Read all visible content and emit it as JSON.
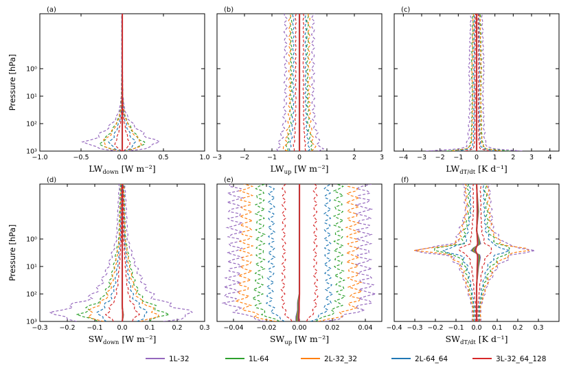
{
  "colors": {
    "1L-32": "#9467bd",
    "1L-64": "#2ca02c",
    "2L-32_32": "#ff7f0e",
    "2L-64_64": "#1f77b4",
    "3L-32_64_128": "#d62728"
  },
  "legend": {
    "entries": [
      "1L-32",
      "1L-64",
      "2L-32_32",
      "2L-64_64",
      "3L-32_64_128"
    ]
  },
  "chart_data": [
    {
      "type": "line",
      "panel_label": "(a)",
      "xlabel_main": "LW",
      "xlabel_sub": "down",
      "xlabel_unit": "[W m⁻²]",
      "ylabel": "Pressure [hPa]",
      "xlim": [
        -1.0,
        1.0
      ],
      "x_ticks": [
        "−1.0",
        "−0.5",
        "0.0",
        "0.5",
        "1.0"
      ],
      "y_scale": "log",
      "ylim": [
        1000,
        0.01
      ],
      "y_inverted": true,
      "y_ticks": [
        "10⁰",
        "10¹",
        "10²",
        "10³"
      ],
      "series_shape": {
        "pressure_hPa": [
          1000,
          900,
          700,
          500,
          300,
          150,
          70,
          30,
          10,
          1,
          0.01
        ],
        "mean": [
          0,
          0,
          0,
          0,
          0,
          0,
          0,
          0,
          0,
          0,
          0
        ],
        "spread_envelope": [
          0.05,
          0.2,
          0.35,
          0.45,
          0.3,
          0.18,
          0.08,
          0.03,
          0.01,
          0.005,
          0.005
        ],
        "spread_scale": {
          "1L-32": 1.0,
          "1L-64": 0.6,
          "2L-32_32": 0.55,
          "2L-64_64": 0.35,
          "3L-32_64_128": 0.2
        }
      }
    },
    {
      "type": "line",
      "panel_label": "(b)",
      "xlabel_main": "LW",
      "xlabel_sub": "up",
      "xlabel_unit": "[W m⁻²]",
      "ylabel": "",
      "xlim": [
        -3,
        3
      ],
      "x_ticks": [
        "−3",
        "−2",
        "−1",
        "0",
        "1",
        "2",
        "3"
      ],
      "y_scale": "log",
      "ylim": [
        1000,
        0.01
      ],
      "y_inverted": true,
      "series_shape": {
        "pressure_hPa": [
          1000,
          800,
          500,
          100,
          10,
          0.01
        ],
        "mean": [
          0,
          0,
          0,
          0,
          0,
          0
        ],
        "spread_envelope": [
          0.7,
          0.8,
          0.7,
          0.55,
          0.5,
          0.5
        ],
        "spread_scale": {
          "1L-32": 1.0,
          "1L-64": 0.6,
          "2L-32_32": 0.7,
          "2L-64_64": 0.45,
          "3L-32_64_128": 0.28
        }
      }
    },
    {
      "type": "line",
      "panel_label": "(c)",
      "xlabel_main": "LW",
      "xlabel_sub": "dT/dt",
      "xlabel_unit": "[K d⁻¹]",
      "ylabel": "",
      "xlim": [
        -4.5,
        4.5
      ],
      "x_ticks": [
        "−4",
        "−3",
        "−2",
        "−1",
        "0",
        "1",
        "2",
        "3",
        "4"
      ],
      "y_scale": "log",
      "ylim": [
        1000,
        0.01
      ],
      "y_inverted": true,
      "series_shape": {
        "pressure_hPa": [
          1000,
          900,
          700,
          400,
          100,
          10,
          1,
          0.01
        ],
        "mean": [
          0,
          0,
          0,
          0,
          0,
          0,
          0,
          0
        ],
        "spread_envelope": [
          2.5,
          1.0,
          0.6,
          0.45,
          0.4,
          0.35,
          0.4,
          0.3
        ],
        "spread_scale": {
          "1L-32": 1.0,
          "1L-64": 0.65,
          "2L-32_32": 0.6,
          "2L-64_64": 0.4,
          "3L-32_64_128": 0.25
        }
      }
    },
    {
      "type": "line",
      "panel_label": "(d)",
      "xlabel_main": "SW",
      "xlabel_sub": "down",
      "xlabel_unit": "[W m⁻²]",
      "ylabel": "Pressure [hPa]",
      "xlim": [
        -0.3,
        0.3
      ],
      "x_ticks": [
        "−0.3",
        "−0.2",
        "−0.1",
        "0.0",
        "0.1",
        "0.2",
        "0.3"
      ],
      "y_scale": "log",
      "ylim": [
        1000,
        0.01
      ],
      "y_inverted": true,
      "y_ticks": [
        "10⁰",
        "10¹",
        "10²",
        "10³"
      ],
      "series_shape": {
        "pressure_hPa": [
          1000,
          600,
          300,
          150,
          50,
          10,
          1,
          0.01
        ],
        "mean": [
          0,
          0.005,
          0,
          0,
          0,
          0,
          0,
          0
        ],
        "spread_envelope": [
          0.15,
          0.26,
          0.2,
          0.12,
          0.08,
          0.05,
          0.02,
          0.01
        ],
        "spread_scale": {
          "1L-32": 1.0,
          "1L-64": 0.6,
          "2L-32_32": 0.5,
          "2L-64_64": 0.35,
          "3L-32_64_128": 0.22
        }
      }
    },
    {
      "type": "line",
      "panel_label": "(e)",
      "xlabel_main": "SW",
      "xlabel_sub": "up",
      "xlabel_unit": "[W m⁻²]",
      "ylabel": "",
      "xlim": [
        -0.05,
        0.05
      ],
      "x_ticks": [
        "−0.04",
        "−0.02",
        "0.00",
        "0.02",
        "0.04"
      ],
      "y_scale": "log",
      "ylim": [
        1000,
        0.01
      ],
      "y_inverted": true,
      "series_shape": {
        "pressure_hPa": [
          1000,
          700,
          400,
          200,
          100,
          30,
          10,
          1,
          0.01
        ],
        "mean": [
          -0.002,
          -0.002,
          -0.001,
          -0.001,
          0,
          0,
          0,
          0,
          0
        ],
        "spread_envelope": [
          0.015,
          0.025,
          0.032,
          0.036,
          0.036,
          0.035,
          0.034,
          0.034,
          0.034
        ],
        "spread_scale": {
          "1L-32": 1.15,
          "1L-64": 0.7,
          "2L-32_32": 0.95,
          "2L-64_64": 0.5,
          "3L-32_64_128": 0.28
        }
      }
    },
    {
      "type": "line",
      "panel_label": "(f)",
      "xlabel_main": "SW",
      "xlabel_sub": "dT/dt",
      "xlabel_unit": "[K d⁻¹]",
      "ylabel": "",
      "xlim": [
        -0.4,
        0.4
      ],
      "x_ticks": [
        "−0.4",
        "−0.3",
        "−0.2",
        "−0.1",
        "0.0",
        "0.1",
        "0.2",
        "0.3"
      ],
      "y_scale": "log",
      "ylim": [
        1000,
        0.01
      ],
      "y_inverted": true,
      "series_shape": {
        "pressure_hPa": [
          1000,
          300,
          50,
          10,
          4,
          2.5,
          1.5,
          0.5,
          0.1,
          0.01
        ],
        "mean": [
          0,
          0,
          0,
          0.01,
          0.02,
          -0.03,
          0.02,
          0,
          0.01,
          0
        ],
        "spread_envelope": [
          0.02,
          0.02,
          0.05,
          0.09,
          0.15,
          0.3,
          0.12,
          0.08,
          0.06,
          0.06
        ],
        "spread_scale": {
          "1L-32": 1.0,
          "1L-64": 0.7,
          "2L-32_32": 0.9,
          "2L-64_64": 0.55,
          "3L-32_64_128": 0.3
        }
      }
    }
  ]
}
